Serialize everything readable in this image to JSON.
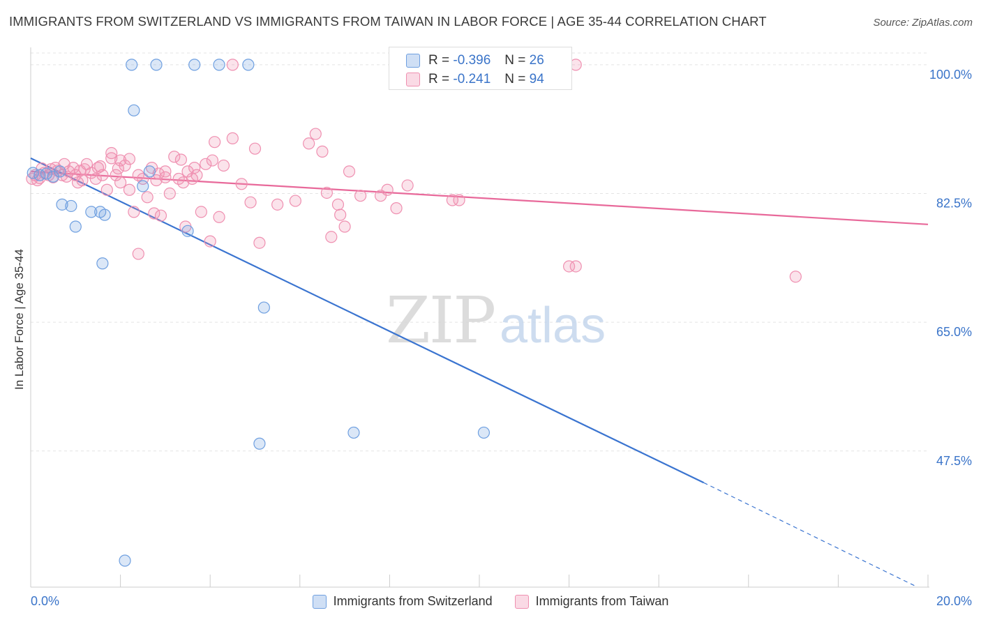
{
  "header": {
    "title": "IMMIGRANTS FROM SWITZERLAND VS IMMIGRANTS FROM TAIWAN IN LABOR FORCE | AGE 35-44 CORRELATION CHART",
    "source": "Source: ZipAtlas.com"
  },
  "watermark": {
    "zip": "ZIP",
    "atlas": "atlas"
  },
  "legend_top": {
    "rows": [
      {
        "r_label": "R =",
        "r_value": "-0.396",
        "n_label": "N =",
        "n_value": "26",
        "color": "#6e9fe0"
      },
      {
        "r_label": "R =",
        "r_value": "-0.241",
        "n_label": "N =",
        "n_value": "94",
        "color": "#ef8fb0"
      }
    ]
  },
  "legend_bottom": {
    "items": [
      {
        "label": "Immigrants from Switzerland",
        "color": "#6e9fe0"
      },
      {
        "label": "Immigrants from Taiwan",
        "color": "#ef8fb0"
      }
    ]
  },
  "chart_data": {
    "type": "scatter",
    "xlabel": "",
    "ylabel": "In Labor Force | Age 35-44",
    "x_tick_labels": [
      "0.0%",
      "20.0%"
    ],
    "y_tick_labels": [
      "47.5%",
      "65.0%",
      "82.5%",
      "100.0%"
    ],
    "y_ticks": [
      47.5,
      65.0,
      82.5,
      100.0
    ],
    "xlim": [
      0,
      20
    ],
    "ylim": [
      29,
      101.6
    ],
    "grid": true,
    "colors": {
      "switzerland": "#6e9fe0",
      "taiwan": "#ef8fb0",
      "switzerland_line": "#3a74d0",
      "taiwan_line": "#e8699a"
    },
    "series": [
      {
        "name": "Immigrants from Switzerland",
        "points": [
          [
            0.05,
            85.3
          ],
          [
            0.2,
            85.0
          ],
          [
            0.35,
            85.2
          ],
          [
            0.5,
            84.8
          ],
          [
            0.65,
            85.5
          ],
          [
            0.7,
            81.0
          ],
          [
            0.9,
            80.8
          ],
          [
            1.0,
            78.0
          ],
          [
            1.35,
            80.0
          ],
          [
            1.55,
            80.0
          ],
          [
            1.65,
            79.6
          ],
          [
            1.6,
            73.0
          ],
          [
            2.25,
            100.0
          ],
          [
            2.8,
            100.0
          ],
          [
            3.65,
            100.0
          ],
          [
            4.2,
            100.0
          ],
          [
            4.85,
            100.0
          ],
          [
            2.3,
            93.8
          ],
          [
            2.5,
            83.5
          ],
          [
            2.65,
            85.5
          ],
          [
            3.5,
            77.4
          ],
          [
            5.2,
            67.0
          ],
          [
            5.1,
            48.5
          ],
          [
            7.2,
            50.0
          ],
          [
            10.1,
            50.0
          ],
          [
            2.1,
            32.6
          ]
        ]
      },
      {
        "name": "Immigrants from Taiwan",
        "points": [
          [
            0.03,
            84.5
          ],
          [
            0.1,
            85.0
          ],
          [
            0.2,
            84.6
          ],
          [
            0.3,
            85.3
          ],
          [
            0.4,
            85.0
          ],
          [
            0.5,
            84.7
          ],
          [
            0.6,
            85.6
          ],
          [
            0.7,
            85.0
          ],
          [
            0.75,
            86.5
          ],
          [
            0.85,
            85.5
          ],
          [
            0.95,
            86.0
          ],
          [
            1.0,
            85.0
          ],
          [
            1.05,
            84.0
          ],
          [
            1.15,
            84.3
          ],
          [
            1.25,
            86.5
          ],
          [
            1.35,
            85.3
          ],
          [
            1.45,
            84.5
          ],
          [
            1.5,
            86.0
          ],
          [
            1.6,
            85.0
          ],
          [
            1.7,
            83.0
          ],
          [
            1.8,
            87.3
          ],
          [
            1.9,
            85.0
          ],
          [
            2.0,
            84.0
          ],
          [
            2.1,
            86.3
          ],
          [
            2.2,
            83.0
          ],
          [
            2.3,
            80.0
          ],
          [
            2.4,
            85.0
          ],
          [
            2.5,
            84.5
          ],
          [
            2.6,
            82.0
          ],
          [
            2.7,
            86.0
          ],
          [
            2.8,
            84.3
          ],
          [
            2.9,
            79.5
          ],
          [
            3.0,
            84.7
          ],
          [
            3.1,
            82.5
          ],
          [
            3.2,
            87.5
          ],
          [
            3.3,
            84.5
          ],
          [
            3.4,
            84.0
          ],
          [
            3.5,
            85.5
          ],
          [
            3.6,
            84.5
          ],
          [
            3.7,
            85.0
          ],
          [
            3.8,
            80.0
          ],
          [
            3.9,
            86.5
          ],
          [
            4.0,
            76.0
          ],
          [
            4.1,
            89.5
          ],
          [
            4.2,
            79.3
          ],
          [
            4.3,
            86.3
          ],
          [
            4.5,
            90.0
          ],
          [
            4.7,
            83.8
          ],
          [
            4.9,
            81.3
          ],
          [
            5.1,
            75.8
          ],
          [
            5.5,
            81.0
          ],
          [
            5.9,
            81.5
          ],
          [
            6.2,
            89.3
          ],
          [
            6.35,
            90.6
          ],
          [
            6.5,
            88.2
          ],
          [
            6.6,
            82.6
          ],
          [
            6.7,
            76.6
          ],
          [
            6.85,
            81.0
          ],
          [
            6.9,
            79.6
          ],
          [
            7.0,
            78.0
          ],
          [
            7.1,
            85.5
          ],
          [
            7.35,
            82.2
          ],
          [
            7.8,
            82.2
          ],
          [
            7.95,
            83.0
          ],
          [
            8.15,
            80.5
          ],
          [
            8.4,
            83.6
          ],
          [
            9.4,
            81.6
          ],
          [
            9.55,
            81.6
          ],
          [
            12.0,
            72.6
          ],
          [
            12.15,
            72.6
          ],
          [
            17.05,
            71.2
          ],
          [
            12.15,
            100.0
          ],
          [
            4.5,
            100.0
          ],
          [
            2.4,
            74.3
          ],
          [
            1.8,
            88.0
          ],
          [
            3.0,
            85.5
          ],
          [
            2.0,
            87.0
          ],
          [
            1.2,
            85.8
          ],
          [
            0.15,
            84.3
          ],
          [
            0.45,
            85.8
          ],
          [
            0.8,
            84.8
          ],
          [
            1.1,
            85.6
          ],
          [
            2.2,
            87.2
          ],
          [
            2.75,
            79.8
          ],
          [
            3.45,
            78.0
          ],
          [
            4.05,
            87.0
          ],
          [
            3.65,
            86.0
          ],
          [
            1.55,
            86.2
          ],
          [
            5.0,
            88.6
          ],
          [
            0.55,
            86.0
          ],
          [
            1.95,
            85.9
          ],
          [
            2.85,
            85.2
          ],
          [
            3.35,
            87.1
          ],
          [
            0.25,
            85.9
          ]
        ]
      }
    ],
    "trend_lines": [
      {
        "name": "Immigrants from Switzerland",
        "x0": 0.0,
        "y0": 87.3,
        "x1": 15.0,
        "y1": 43.2,
        "dash_to_x": 19.7,
        "dash_to_y": 29.2
      },
      {
        "name": "Immigrants from Taiwan",
        "x0": 0.0,
        "y0": 85.5,
        "x1": 20.0,
        "y1": 78.3
      }
    ]
  }
}
